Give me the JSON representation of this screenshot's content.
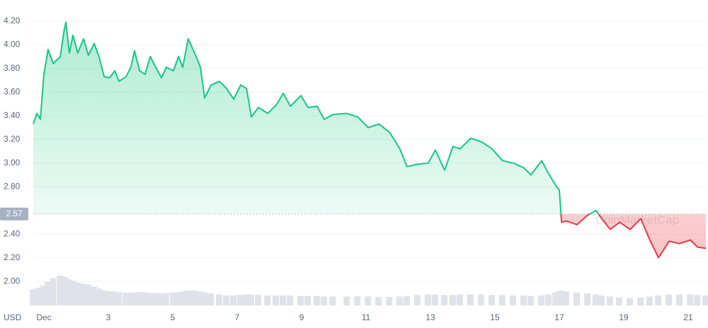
{
  "chart_data": {
    "type": "line",
    "y_label": "USD",
    "watermark": "CoinMarketCap",
    "color_up": "#16c784",
    "color_down": "#ea3943",
    "volume_color": "#dfe2e8",
    "grid": true,
    "reference_line": 2.57,
    "ylim": [
      1.75,
      4.3
    ],
    "yticks": [
      {
        "value": 2.0,
        "label": "2.00"
      },
      {
        "value": 2.2,
        "label": "2.20"
      },
      {
        "value": 2.4,
        "label": "2.40"
      },
      {
        "value": 2.8,
        "label": "2.80"
      },
      {
        "value": 3.0,
        "label": "3.00"
      },
      {
        "value": 3.2,
        "label": "3.20"
      },
      {
        "value": 3.4,
        "label": "3.40"
      },
      {
        "value": 3.6,
        "label": "3.60"
      },
      {
        "value": 3.8,
        "label": "3.80"
      },
      {
        "value": 4.0,
        "label": "4.00"
      },
      {
        "value": 4.2,
        "label": "4.20"
      }
    ],
    "xlim": [
      0.67,
      21.55
    ],
    "xticks": [
      {
        "value": 1,
        "label": "Dec"
      },
      3,
      5,
      7,
      9,
      11,
      13,
      15,
      17,
      19,
      21
    ],
    "x": [
      0.67,
      0.78,
      0.89,
      1.0,
      1.13,
      1.29,
      1.51,
      1.62,
      1.68,
      1.79,
      1.9,
      2.05,
      2.23,
      2.38,
      2.56,
      2.71,
      2.87,
      3.04,
      3.2,
      3.33,
      3.55,
      3.7,
      3.81,
      3.97,
      4.14,
      4.3,
      4.47,
      4.65,
      4.8,
      5.02,
      5.18,
      5.31,
      5.48,
      5.68,
      5.86,
      5.99,
      6.19,
      6.45,
      6.67,
      6.89,
      7.11,
      7.29,
      7.44,
      7.66,
      7.95,
      8.21,
      8.43,
      8.65,
      8.98,
      9.2,
      9.48,
      9.7,
      9.97,
      10.41,
      10.74,
      11.07,
      11.4,
      11.73,
      12.05,
      12.27,
      12.6,
      12.93,
      13.15,
      13.44,
      13.7,
      13.92,
      14.25,
      14.58,
      14.91,
      15.24,
      15.57,
      15.9,
      16.12,
      16.45,
      16.67,
      16.89,
      17.0,
      17.07,
      17.22,
      17.55,
      17.88,
      18.14,
      18.32,
      18.58,
      18.87,
      19.2,
      19.53,
      19.81,
      20.08,
      20.41,
      20.74,
      21.07,
      21.29,
      21.55
    ],
    "values": [
      3.33,
      3.42,
      3.37,
      3.75,
      3.96,
      3.84,
      3.9,
      4.11,
      4.19,
      3.93,
      4.08,
      3.93,
      4.05,
      3.91,
      4.01,
      3.9,
      3.73,
      3.72,
      3.78,
      3.69,
      3.73,
      3.81,
      3.95,
      3.78,
      3.75,
      3.9,
      3.81,
      3.72,
      3.81,
      3.78,
      3.9,
      3.81,
      4.05,
      3.93,
      3.81,
      3.55,
      3.66,
      3.69,
      3.63,
      3.54,
      3.66,
      3.63,
      3.39,
      3.47,
      3.42,
      3.49,
      3.59,
      3.48,
      3.57,
      3.47,
      3.48,
      3.37,
      3.41,
      3.42,
      3.39,
      3.3,
      3.33,
      3.26,
      3.12,
      2.97,
      2.99,
      3.0,
      3.11,
      2.94,
      3.14,
      3.12,
      3.21,
      3.18,
      3.12,
      3.02,
      3.0,
      2.96,
      2.9,
      3.02,
      2.91,
      2.81,
      2.77,
      2.5,
      2.51,
      2.48,
      2.56,
      2.6,
      2.53,
      2.44,
      2.5,
      2.44,
      2.53,
      2.35,
      2.2,
      2.34,
      2.32,
      2.35,
      2.29,
      2.28
    ],
    "volume": [
      32,
      34,
      36,
      40,
      48,
      55,
      60,
      58,
      56,
      52,
      50,
      46,
      44,
      42,
      38,
      34,
      30,
      29,
      28,
      27,
      26,
      25,
      26,
      27,
      26,
      25,
      25,
      24,
      25,
      26,
      27,
      28,
      30,
      30,
      28,
      26,
      24,
      22,
      20,
      20,
      21,
      22,
      22,
      21,
      20,
      20,
      20,
      20,
      19,
      19,
      19,
      18,
      18,
      18,
      18,
      18,
      17,
      17,
      18,
      19,
      21,
      22,
      22,
      21,
      21,
      22,
      22,
      22,
      21,
      21,
      20,
      20,
      19,
      20,
      22,
      26,
      28,
      30,
      28,
      26,
      24,
      22,
      20,
      18,
      16,
      15,
      16,
      18,
      20,
      22,
      22,
      22,
      21,
      20
    ]
  }
}
